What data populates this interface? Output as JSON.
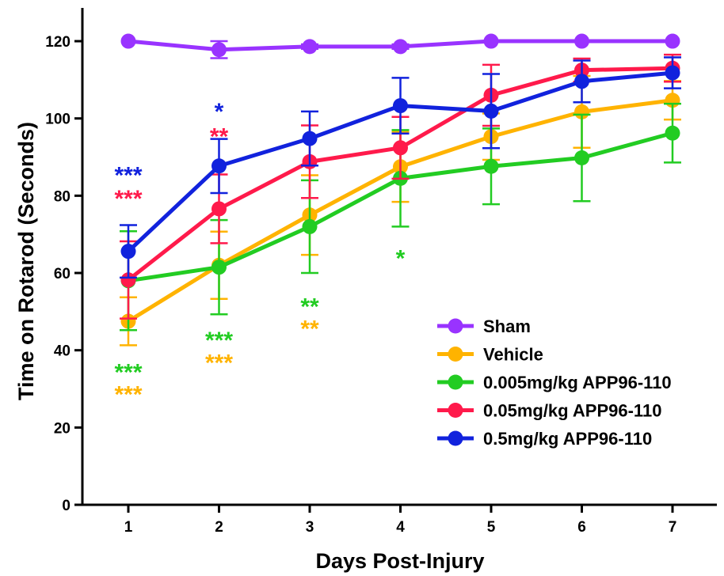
{
  "chart_data": {
    "type": "line",
    "title": "",
    "xlabel": "Days Post-Injury",
    "ylabel": "Time on Rotarod (Seconds)",
    "x": [
      1,
      2,
      3,
      4,
      5,
      6,
      7
    ],
    "x_tick_labels": [
      "1",
      "2",
      "3",
      "4",
      "5",
      "6",
      "7"
    ],
    "xlim": [
      0.5,
      7.5
    ],
    "ylim": [
      0,
      130
    ],
    "y_ticks": [
      0,
      20,
      40,
      60,
      80,
      100,
      120
    ],
    "y_tick_labels": [
      "0",
      "20",
      "40",
      "60",
      "80",
      "100",
      "120"
    ],
    "grid": false,
    "legend_position": "bottom-right",
    "error_bars": "upper and lower whiskers",
    "series": [
      {
        "name": "Sham",
        "color": "#9933FF",
        "values": [
          120,
          117.8,
          118.6,
          118.6,
          120,
          120,
          120
        ],
        "errors": [
          0,
          2.2,
          0.6,
          0.6,
          0,
          0,
          0
        ]
      },
      {
        "name": "Vehicle",
        "color": "#FFB300",
        "values": [
          47.5,
          62,
          75,
          87.5,
          95.3,
          101.7,
          104.7
        ],
        "errors": [
          6.2,
          8.7,
          10.3,
          9.1,
          6,
          9.3,
          5
        ]
      },
      {
        "name": "0.005mg/kg APP96-110",
        "color": "#22CC22",
        "values": [
          58,
          61.5,
          72,
          84.5,
          87.6,
          89.8,
          96.2
        ],
        "errors": [
          12.8,
          12.2,
          12,
          12.5,
          9.8,
          11.2,
          7.6
        ]
      },
      {
        "name": "0.05mg/kg APP96-110",
        "color": "#FF1A4B",
        "values": [
          58.2,
          76.6,
          88.8,
          92.4,
          106,
          112.5,
          113
        ],
        "errors": [
          10,
          8.9,
          9.4,
          8,
          7.9,
          3,
          3.5
        ]
      },
      {
        "name": "0.5mg/kg APP96-110",
        "color": "#1122DD",
        "values": [
          65.6,
          87.7,
          94.8,
          103.3,
          101.9,
          109.6,
          111.8
        ],
        "errors": [
          6.8,
          7,
          7,
          7.2,
          9.6,
          5.4,
          4
        ]
      }
    ],
    "annotations": [
      {
        "text": "***",
        "x": 1,
        "y": 85.5,
        "color": "#1122DD"
      },
      {
        "text": "***",
        "x": 1,
        "y": 79.5,
        "color": "#FF1A4B"
      },
      {
        "text": "***",
        "x": 1,
        "y": 34.5,
        "color": "#22CC22"
      },
      {
        "text": "***",
        "x": 1,
        "y": 28.8,
        "color": "#FFB300"
      },
      {
        "text": "*",
        "x": 2,
        "y": 102,
        "color": "#1122DD"
      },
      {
        "text": "**",
        "x": 2,
        "y": 95.5,
        "color": "#FF1A4B"
      },
      {
        "text": "***",
        "x": 2,
        "y": 42.8,
        "color": "#22CC22"
      },
      {
        "text": "***",
        "x": 2,
        "y": 37,
        "color": "#FFB300"
      },
      {
        "text": "**",
        "x": 3,
        "y": 51.5,
        "color": "#22CC22"
      },
      {
        "text": "**",
        "x": 3,
        "y": 45.8,
        "color": "#FFB300"
      },
      {
        "text": "*",
        "x": 4,
        "y": 64,
        "color": "#22CC22"
      }
    ]
  }
}
